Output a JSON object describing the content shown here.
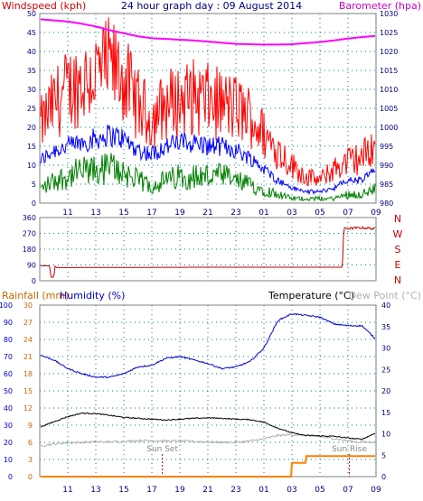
{
  "header": {
    "windspeed_label": "Windspeed (kph)",
    "title": "24 hour graph day : 09 August 2014",
    "barometer_label": "Barometer (hpa)"
  },
  "lower_header": {
    "rainfall_label": "Rainfall (mm)",
    "humidity_label": "Humidity (%)",
    "temperature_label": "Temperature (°C)",
    "dewpoint_label": "Dew Point (°C)"
  },
  "markers": {
    "sunset": "Sun Set",
    "sunrise": "Sun Rise"
  },
  "colors": {
    "windspeed": "#ff0000",
    "wind_avg": "#0000ff",
    "wind_low": "#008000",
    "barometer": "#ff00ff",
    "direction": "#c00000",
    "humidity": "#0000cc",
    "temperature": "#000000",
    "dewpoint": "#b0b0b0",
    "rainfall": "#ff8000",
    "rainfall_axis": "#cc6600",
    "grid": "#008080"
  },
  "chart_data": [
    {
      "type": "line",
      "id": "wind",
      "title": "24 hour graph day : 09 August 2014",
      "x_tick_labels": [
        "11",
        "13",
        "15",
        "17",
        "19",
        "21",
        "23",
        "01",
        "03",
        "05",
        "07",
        "09"
      ],
      "ylim_left": [
        0,
        50
      ],
      "y_ticks_left": [
        "0",
        "5",
        "10",
        "15",
        "20",
        "25",
        "30",
        "35",
        "40",
        "45",
        "50"
      ],
      "ylim_right": [
        980,
        1030
      ],
      "y_ticks_right": [
        "980",
        "985",
        "990",
        "995",
        "1000",
        "1005",
        "1010",
        "1015",
        "1020",
        "1025",
        "1030"
      ],
      "x_hours": [
        9,
        10,
        11,
        12,
        13,
        14,
        15,
        16,
        17,
        18,
        19,
        20,
        21,
        22,
        23,
        24,
        25,
        26,
        27,
        28,
        29,
        30,
        31,
        32,
        33
      ],
      "series": [
        {
          "name": "Windspeed (kph)",
          "axis": "left",
          "values": [
            20,
            26,
            30,
            32,
            34,
            36,
            33,
            26,
            22,
            26,
            27,
            28,
            27,
            26,
            25,
            23,
            18,
            14,
            10,
            7,
            6,
            9,
            11,
            12,
            16
          ]
        },
        {
          "name": "",
          "axis": "left",
          "values": [
            11,
            14,
            15,
            16,
            17,
            18,
            17,
            14,
            13,
            15,
            16,
            16,
            15,
            15,
            14,
            12,
            9,
            6,
            4,
            3,
            3,
            4,
            6,
            6,
            9
          ]
        },
        {
          "name": "",
          "axis": "left",
          "values": [
            3,
            5,
            6,
            7,
            7,
            8,
            7,
            5,
            4,
            5,
            6,
            6,
            6,
            6,
            5,
            4,
            3,
            2,
            1,
            1,
            1,
            1,
            2,
            2,
            3
          ]
        },
        {
          "name": "Barometer (hpa)",
          "axis": "right",
          "values": [
            1028.5,
            1028.2,
            1027.9,
            1027.3,
            1026.6,
            1025.6,
            1024.8,
            1024.0,
            1023.5,
            1023.3,
            1023.1,
            1022.9,
            1022.6,
            1022.3,
            1022.0,
            1021.9,
            1021.8,
            1021.8,
            1021.9,
            1022.2,
            1022.5,
            1022.9,
            1023.4,
            1023.8,
            1024.1
          ]
        }
      ]
    },
    {
      "type": "line",
      "id": "direction",
      "ylim": [
        0,
        360
      ],
      "y_ticks": [
        "0",
        "45",
        "90",
        "135",
        "180",
        "225",
        "270",
        "315",
        "360"
      ],
      "compass_labels": [
        "N",
        "W",
        "S",
        "E",
        "N"
      ],
      "x_hours": [
        9,
        9.7,
        9.8,
        10.0,
        10.1,
        10.2,
        15,
        20,
        25,
        30.6,
        30.7,
        31,
        32,
        33
      ],
      "series": [
        {
          "name": "",
          "values": [
            85,
            85,
            20,
            20,
            85,
            75,
            76,
            77,
            77,
            77,
            300,
            298,
            302,
            296
          ]
        }
      ]
    },
    {
      "type": "line",
      "id": "climate",
      "x_tick_labels": [
        "11",
        "13",
        "15",
        "17",
        "19",
        "21",
        "23",
        "01",
        "03",
        "05",
        "07",
        "09"
      ],
      "ylim_humidity": [
        0,
        100
      ],
      "y_ticks_humidity": [
        "0",
        "10",
        "20",
        "30",
        "40",
        "50",
        "60",
        "70",
        "80",
        "90",
        "100"
      ],
      "ylim_rainfall": [
        0,
        30
      ],
      "y_ticks_rainfall": [
        "0",
        "3",
        "6",
        "9",
        "12",
        "15",
        "18",
        "21",
        "24",
        "27",
        "30"
      ],
      "ylim_temperature": [
        0,
        40
      ],
      "y_ticks_temperature": [
        "0",
        "5",
        "10",
        "15",
        "20",
        "25",
        "30",
        "35",
        "40"
      ],
      "x_hours": [
        9,
        10,
        11,
        12,
        13,
        14,
        15,
        16,
        17,
        18,
        19,
        20,
        21,
        22,
        23,
        24,
        25,
        26,
        27,
        28,
        29,
        30,
        31,
        32,
        33
      ],
      "series": [
        {
          "name": "Humidity (%)",
          "axis": "humidity",
          "values": [
            71,
            68,
            63,
            60,
            58,
            58,
            60,
            64,
            65,
            69,
            70,
            68,
            66,
            63,
            64,
            67,
            75,
            91,
            95,
            94,
            93,
            89,
            88,
            88,
            80
          ]
        },
        {
          "name": "Temperature (°C)",
          "axis": "temperature",
          "values": [
            11.5,
            12.8,
            14.0,
            14.8,
            14.7,
            14.3,
            13.8,
            13.6,
            13.4,
            13.2,
            13.4,
            13.6,
            13.7,
            13.6,
            13.4,
            13.3,
            12.7,
            11.3,
            10.2,
            9.6,
            9.5,
            9.4,
            9.0,
            8.7,
            10.2
          ]
        },
        {
          "name": "Dew Point (°C)",
          "axis": "temperature",
          "values": [
            7.2,
            7.6,
            7.9,
            8.0,
            8.1,
            8.1,
            8.2,
            8.4,
            8.4,
            8.3,
            8.3,
            8.2,
            8.1,
            8.0,
            8.0,
            8.3,
            8.8,
            9.6,
            9.8,
            9.6,
            9.3,
            8.9,
            8.3,
            8.0,
            8.1
          ]
        },
        {
          "name": "Rainfall (mm)",
          "axis": "rainfall",
          "values": [
            0,
            0,
            0,
            0,
            0,
            0,
            0,
            0,
            0,
            0,
            0,
            0,
            0,
            0,
            0,
            0,
            0,
            0,
            2.4,
            3.6,
            3.6,
            3.6,
            3.6,
            3.6,
            3.6
          ]
        }
      ],
      "sunset_hour": 17.75,
      "sunrise_hour": 31.1
    }
  ]
}
